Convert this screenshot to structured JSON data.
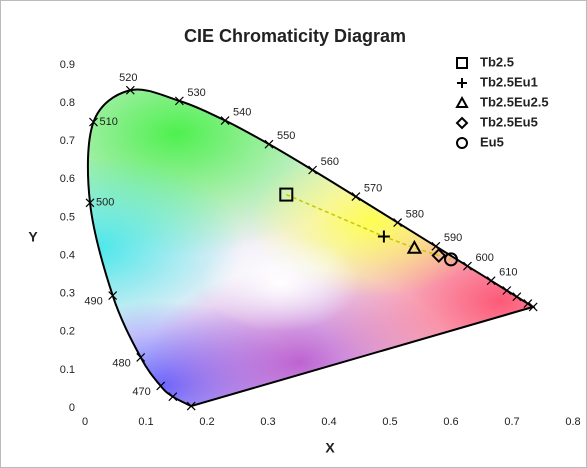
{
  "chart_data": {
    "type": "scatter",
    "title": "CIE Chromaticity Diagram",
    "xlabel": "X",
    "ylabel": "Y",
    "xlim": [
      0,
      0.8
    ],
    "ylim": [
      0,
      0.9
    ],
    "xticks": [
      0,
      0.1,
      0.2,
      0.3,
      0.4,
      0.5,
      0.6,
      0.7,
      0.8
    ],
    "yticks": [
      0,
      0.1,
      0.2,
      0.3,
      0.4,
      0.5,
      0.6,
      0.7,
      0.8,
      0.9
    ],
    "grid": false,
    "legend": "upper right",
    "locus": {
      "color": "#000000",
      "labels": [
        null,
        null,
        "470",
        "480",
        "490",
        "500",
        "510",
        "520",
        "530",
        "540",
        "550",
        "560",
        "570",
        "580",
        "590",
        "600",
        "610",
        null,
        null,
        null,
        null
      ],
      "x": [
        0.1741,
        0.144,
        0.1241,
        0.0913,
        0.0454,
        0.0082,
        0.0139,
        0.0743,
        0.1547,
        0.2296,
        0.3016,
        0.3731,
        0.4441,
        0.5125,
        0.5752,
        0.627,
        0.6658,
        0.6915,
        0.7079,
        0.726,
        0.7347
      ],
      "y": [
        0.005,
        0.0297,
        0.0578,
        0.1327,
        0.295,
        0.5384,
        0.7502,
        0.8338,
        0.8059,
        0.7543,
        0.6923,
        0.6245,
        0.5547,
        0.4866,
        0.4242,
        0.3725,
        0.334,
        0.3083,
        0.292,
        0.274,
        0.2653
      ]
    },
    "connector_color": "#c8c800",
    "series": [
      {
        "name": "Tb2.5",
        "marker": "square",
        "color": "#000000",
        "x": [
          0.33
        ],
        "values": [
          0.56
        ]
      },
      {
        "name": "Tb2.5Eu1",
        "marker": "plus",
        "color": "#000000",
        "x": [
          0.49
        ],
        "values": [
          0.45
        ]
      },
      {
        "name": "Tb2.5Eu2.5",
        "marker": "triangle",
        "color": "#000000",
        "x": [
          0.54
        ],
        "values": [
          0.42
        ]
      },
      {
        "name": "Tb2.5Eu5",
        "marker": "diamond",
        "color": "#000000",
        "x": [
          0.58
        ],
        "values": [
          0.4
        ]
      },
      {
        "name": "Eu5",
        "marker": "circle",
        "color": "#000000",
        "x": [
          0.6
        ],
        "values": [
          0.39
        ]
      }
    ]
  }
}
